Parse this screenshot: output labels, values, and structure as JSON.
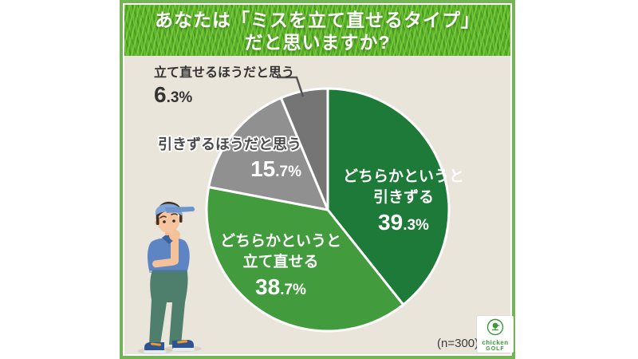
{
  "title": {
    "line1": "あなたは「ミスを立て直せるタイプ」",
    "line2": "だと思いますか?"
  },
  "chart_data": {
    "type": "pie",
    "title": "あなたは「ミスを立て直せるタイプ」だと思いますか?",
    "direction": "clockwise",
    "start_angle": "12-oclock",
    "sample_note": "(n=300)",
    "slices": [
      {
        "label": "どちらかというと引きずる",
        "label_lines": [
          "どちらかというと",
          "引きずる"
        ],
        "value": 39.3,
        "color": "#1e7a38",
        "label_placement": "inside-white"
      },
      {
        "label": "どちらかというと立て直せる",
        "label_lines": [
          "どちらかというと",
          "立て直せる"
        ],
        "value": 38.7,
        "color": "#429c3e",
        "label_placement": "inside-white"
      },
      {
        "label": "引きずるほうだと思う",
        "label_lines": [
          "引きずるほうだと思う"
        ],
        "value": 15.7,
        "color": "#909090",
        "label_placement": "outside-dark"
      },
      {
        "label": "立て直せるほうだと思う",
        "label_lines": [
          "立て直せるほうだと思う"
        ],
        "value": 6.3,
        "color": "#757575",
        "label_placement": "outside-dark-leader"
      }
    ]
  },
  "logo": {
    "line1": "chicken",
    "line2": "GOLF"
  },
  "colors": {
    "card_background": "#eae5da",
    "frame_green": "#74b356",
    "grass_green": "#53ad2a",
    "title_text": "#ffffff",
    "slice_divider": "#ffffff",
    "leader_line": "#555555"
  }
}
